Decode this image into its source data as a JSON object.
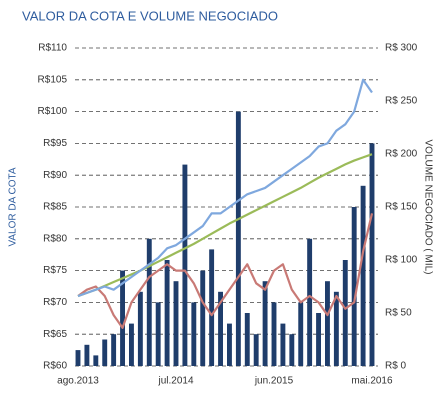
{
  "chart_data": {
    "type": "combo",
    "title": "VALOR DA COTA E VOLUME NEGOCIADO",
    "y_label": "VALOR DA COTA",
    "y2_label": "VOLUME NEGOCIADO ( MIL)",
    "categories": [
      "ago.2013",
      null,
      null,
      null,
      null,
      null,
      null,
      null,
      null,
      null,
      null,
      "jul.2014",
      null,
      null,
      null,
      null,
      null,
      null,
      null,
      null,
      null,
      null,
      "jun.2015",
      null,
      null,
      null,
      null,
      null,
      null,
      null,
      null,
      null,
      null,
      "mai.2016"
    ],
    "series": [
      {
        "kind": "bar",
        "axis": "y2",
        "color": "#1f3d6b",
        "values": [
          15,
          20,
          10,
          25,
          30,
          90,
          40,
          70,
          120,
          60,
          100,
          80,
          190,
          60,
          90,
          110,
          70,
          40,
          240,
          50,
          30,
          80,
          60,
          40,
          30,
          60,
          120,
          50,
          80,
          70,
          100,
          150,
          170,
          210
        ]
      },
      {
        "kind": "line",
        "color": "#c97a76",
        "values": [
          71,
          72,
          72.5,
          71,
          68,
          66,
          70,
          72,
          74,
          75,
          76,
          75,
          75,
          73,
          70,
          68,
          70,
          72,
          74,
          76,
          73,
          72,
          75,
          76,
          72,
          70,
          71,
          70,
          68,
          71,
          69,
          70,
          78,
          84
        ]
      },
      {
        "kind": "line",
        "color": "#9bbb59",
        "values": [
          71,
          71.5,
          72,
          72.6,
          73.2,
          73.8,
          74.4,
          75,
          75.7,
          76.4,
          77.1,
          77.8,
          78.5,
          79.2,
          80,
          80.8,
          81.6,
          82.4,
          83.1,
          83.8,
          84.5,
          85.2,
          85.9,
          86.6,
          87.3,
          88,
          88.8,
          89.6,
          90.3,
          91,
          91.7,
          92.3,
          92.8,
          93.3
        ]
      },
      {
        "kind": "line",
        "color": "#7fa8de",
        "values": [
          71,
          71.5,
          72,
          72.5,
          72,
          73,
          74,
          75,
          76,
          77,
          78.5,
          79,
          80,
          81,
          82,
          84,
          84,
          85,
          86,
          87,
          87.5,
          88,
          89,
          90,
          91,
          92,
          93,
          94.5,
          95,
          97,
          98,
          100,
          105,
          103
        ]
      }
    ],
    "ylim": [
      60,
      110
    ],
    "yticks": [
      {
        "value": 60,
        "label": "R$60"
      },
      {
        "value": 65,
        "label": "R$65"
      },
      {
        "value": 70,
        "label": "R$70"
      },
      {
        "value": 75,
        "label": "R$75"
      },
      {
        "value": 80,
        "label": "R$80"
      },
      {
        "value": 85,
        "label": "R$85"
      },
      {
        "value": 90,
        "label": "R$90"
      },
      {
        "value": 95,
        "label": "R$95"
      },
      {
        "value": 100,
        "label": "R$100"
      },
      {
        "value": 105,
        "label": "R$105"
      },
      {
        "value": 110,
        "label": "R$110"
      }
    ],
    "y2lim": [
      0,
      300
    ],
    "y2ticks": [
      {
        "value": 0,
        "label": "R$ 0"
      },
      {
        "value": 50,
        "label": "R$ 50"
      },
      {
        "value": 100,
        "label": "R$ 100"
      },
      {
        "value": 150,
        "label": "R$ 150"
      },
      {
        "value": 200,
        "label": "R$ 200"
      },
      {
        "value": 250,
        "label": "R$ 250"
      },
      {
        "value": 300,
        "label": "R$ 300"
      }
    ],
    "grid": true
  }
}
